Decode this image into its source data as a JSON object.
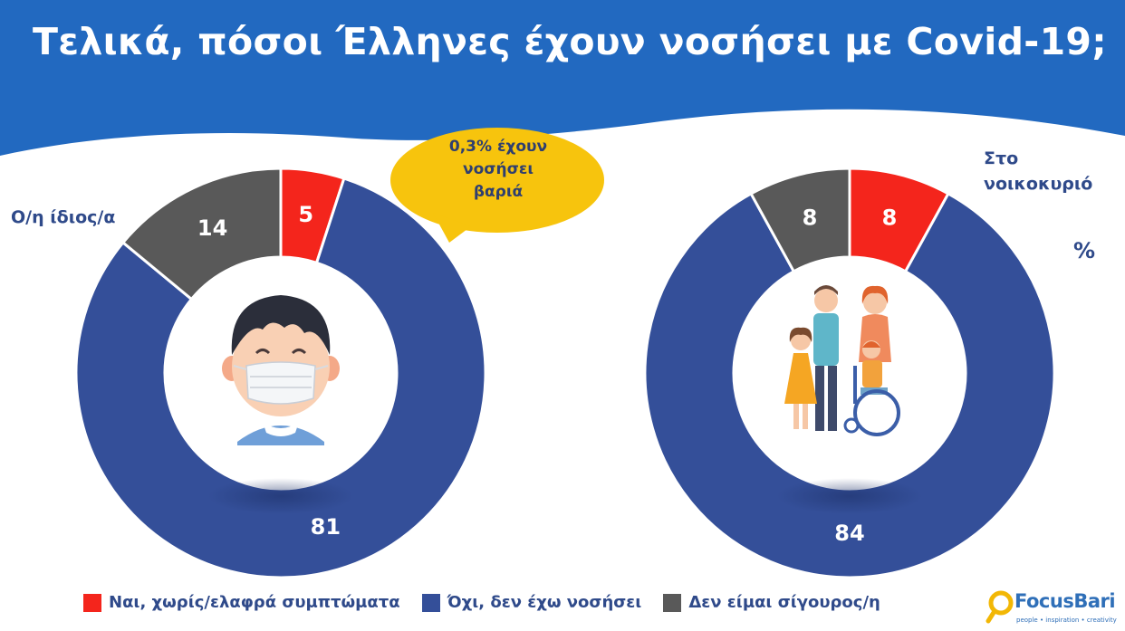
{
  "title": "Τελικά, πόσοι Έλληνες έχουν νοσήσει με Covid-19;",
  "callout": {
    "line1": "0,3% έχουν",
    "line2": "νοσήσει",
    "line3": "βαριά"
  },
  "unit_label": "%",
  "colors": {
    "yes": "#f4251c",
    "no": "#344f99",
    "unsure": "#595959",
    "header": "#2269c0",
    "callout": "#f7c40d"
  },
  "chart_data": [
    {
      "type": "pie",
      "donut": true,
      "title": "Ο/η ίδιος/α",
      "categories": [
        "Ναι, χωρίς/ελαφρά συμπτώματα",
        "Όχι, δεν έχω νοσήσει",
        "Δεν είμαι σίγουρος/η"
      ],
      "values": [
        5,
        81,
        14
      ],
      "value_labels": [
        "5",
        "81",
        "14"
      ],
      "center_icon": "masked-person-icon"
    },
    {
      "type": "pie",
      "donut": true,
      "title_line1": "Στο",
      "title_line2": "νοικοκυριό",
      "categories": [
        "Ναι, χωρίς/ελαφρά συμπτώματα",
        "Όχι, δεν έχω νοσήσει",
        "Δεν είμαι σίγουρος/η"
      ],
      "values": [
        8,
        84,
        8
      ],
      "value_labels": [
        "8",
        "84",
        "8"
      ],
      "center_icon": "family-icon"
    }
  ],
  "legend": [
    {
      "label": "Ναι, χωρίς/ελαφρά συμπτώματα",
      "color": "#f4251c"
    },
    {
      "label": "Όχι, δεν έχω νοσήσει",
      "color": "#344f99"
    },
    {
      "label": "Δεν είμαι σίγουρος/η",
      "color": "#595959"
    }
  ],
  "logo": {
    "name": "FocusBari",
    "tagline": "people • inspiration • creativity",
    "icon": "magnifier-logo-icon"
  }
}
